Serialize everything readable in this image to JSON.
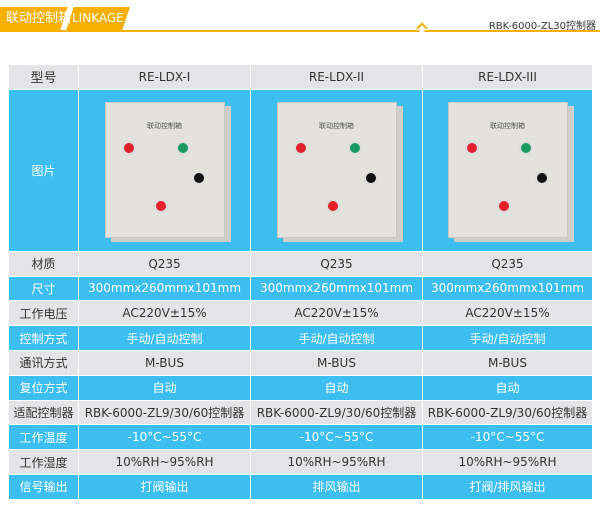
{
  "header": {
    "title_cn": "联动控制箱",
    "title_en": "LINKAGE",
    "subtitle": "RBK-6000-ZL30控制器"
  },
  "colors": {
    "accent": "#f7b000",
    "blue": "#3cbef0",
    "gray": "#e4e4e6"
  },
  "table": {
    "header": {
      "label": "型号",
      "models": [
        "RE-LDX-I",
        "RE-LDX-II",
        "RE-LDX-III"
      ]
    },
    "image_row": {
      "label": "图片",
      "box_title": "联动控制箱"
    },
    "rows": [
      {
        "label": "材质",
        "values": [
          "Q235",
          "Q235",
          "Q235"
        ]
      },
      {
        "label": "尺寸",
        "values": [
          "300mmx260mmx101mm",
          "300mmx260mmx101mm",
          "300mmx260mmx101mm"
        ]
      },
      {
        "label": "工作电压",
        "values": [
          "AC220V±15%",
          "AC220V±15%",
          "AC220V±15%"
        ]
      },
      {
        "label": "控制方式",
        "values": [
          "手动/自动控制",
          "手动/自动控制",
          "手动/自动控制"
        ]
      },
      {
        "label": "通讯方式",
        "values": [
          "M-BUS",
          "M-BUS",
          "M-BUS"
        ]
      },
      {
        "label": "复位方式",
        "values": [
          "自动",
          "自动",
          "自动"
        ]
      },
      {
        "label": "适配控制器",
        "values": [
          "RBK-6000-ZL9/30/60控制器",
          "RBK-6000-ZL9/30/60控制器",
          "RBK-6000-ZL9/30/60控制器"
        ]
      },
      {
        "label": "工作温度",
        "values": [
          "-10°C~55°C",
          "-10°C~55°C",
          "-10°C~55°C"
        ]
      },
      {
        "label": "工作湿度",
        "values": [
          "10%RH~95%RH",
          "10%RH~95%RH",
          "10%RH~95%RH"
        ]
      },
      {
        "label": "信号输出",
        "values": [
          "打阀输出",
          "排风输出",
          "打阀/排风输出"
        ]
      }
    ]
  }
}
